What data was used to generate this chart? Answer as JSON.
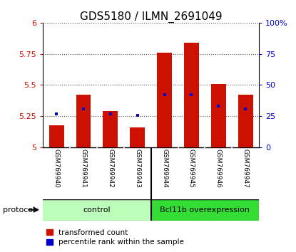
{
  "title": "GDS5180 / ILMN_2691049",
  "samples": [
    "GSM769940",
    "GSM769941",
    "GSM769942",
    "GSM769943",
    "GSM769944",
    "GSM769945",
    "GSM769946",
    "GSM769947"
  ],
  "red_values": [
    5.18,
    5.42,
    5.29,
    5.16,
    5.76,
    5.84,
    5.51,
    5.42
  ],
  "blue_values": [
    5.27,
    5.31,
    5.27,
    5.26,
    5.42,
    5.42,
    5.33,
    5.31
  ],
  "bar_bottom": 5.0,
  "ylim": [
    5.0,
    6.0
  ],
  "yticks_left": [
    5.0,
    5.25,
    5.5,
    5.75,
    6.0
  ],
  "yticks_left_labels": [
    "5",
    "5.25",
    "5.5",
    "5.75",
    "6"
  ],
  "yticks_right": [
    0,
    25,
    50,
    75,
    100
  ],
  "yticks_right_labels": [
    "0",
    "25",
    "50",
    "75",
    "100%"
  ],
  "ylim_right": [
    0,
    100
  ],
  "group1_count": 4,
  "group1_label": "control",
  "group1_color": "#bbffbb",
  "group2_label": "Bcl11b overexpression",
  "group2_color": "#33dd33",
  "bar_color": "#cc1100",
  "blue_color": "#0000cc",
  "gray_bg": "#c8c8c8",
  "legend_red": "transformed count",
  "legend_blue": "percentile rank within the sample",
  "protocol_label": "protocol",
  "title_fontsize": 11,
  "tick_fontsize": 8,
  "sample_fontsize": 6.5,
  "group_fontsize": 8,
  "legend_fontsize": 7.5
}
